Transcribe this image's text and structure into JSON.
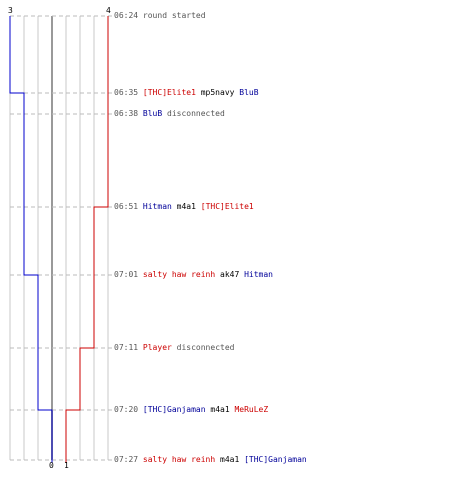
{
  "colors": {
    "team_blue": "#0000cc",
    "team_red": "#cc0000",
    "grid": "#c8c8c8",
    "divider": "#999999",
    "dashed": "#bbbbbb"
  },
  "score": {
    "blue_start": "3",
    "red_start": "4",
    "blue_end": "0",
    "red_end": "1"
  },
  "events": [
    {
      "time": "06:24",
      "parts": [
        {
          "text": "round started",
          "color": "grey"
        }
      ]
    },
    {
      "time": "06:35",
      "parts": [
        {
          "text": "[THC]Elite1",
          "color": "red"
        },
        {
          "text": "mp5navy",
          "color": "black"
        },
        {
          "text": "BluB",
          "color": "blue"
        }
      ]
    },
    {
      "time": "06:38",
      "parts": [
        {
          "text": "BluB",
          "color": "blue"
        },
        {
          "text": "disconnected",
          "color": "grey"
        }
      ]
    },
    {
      "time": "06:51",
      "parts": [
        {
          "text": "Hitman",
          "color": "blue"
        },
        {
          "text": "m4a1",
          "color": "black"
        },
        {
          "text": "[THC]Elite1",
          "color": "red"
        }
      ]
    },
    {
      "time": "07:01",
      "parts": [
        {
          "text": "salty haw reinh",
          "color": "red"
        },
        {
          "text": "ak47",
          "color": "black"
        },
        {
          "text": "Hitman",
          "color": "blue"
        }
      ]
    },
    {
      "time": "07:11",
      "parts": [
        {
          "text": "Player",
          "color": "red"
        },
        {
          "text": "disconnected",
          "color": "grey"
        }
      ]
    },
    {
      "time": "07:20",
      "parts": [
        {
          "text": "[THC]Ganjaman",
          "color": "blue"
        },
        {
          "text": "m4a1",
          "color": "black"
        },
        {
          "text": "MeRuLeZ",
          "color": "red"
        }
      ]
    },
    {
      "time": "07:27",
      "parts": [
        {
          "text": "salty haw reinh",
          "color": "red"
        },
        {
          "text": "m4a1",
          "color": "black"
        },
        {
          "text": "[THC]Ganjaman",
          "color": "blue"
        }
      ]
    }
  ],
  "blue_steps": [
    3,
    2,
    2,
    2,
    1,
    1,
    0,
    0
  ],
  "red_steps": [
    4,
    4,
    4,
    3,
    3,
    2,
    1,
    1
  ]
}
